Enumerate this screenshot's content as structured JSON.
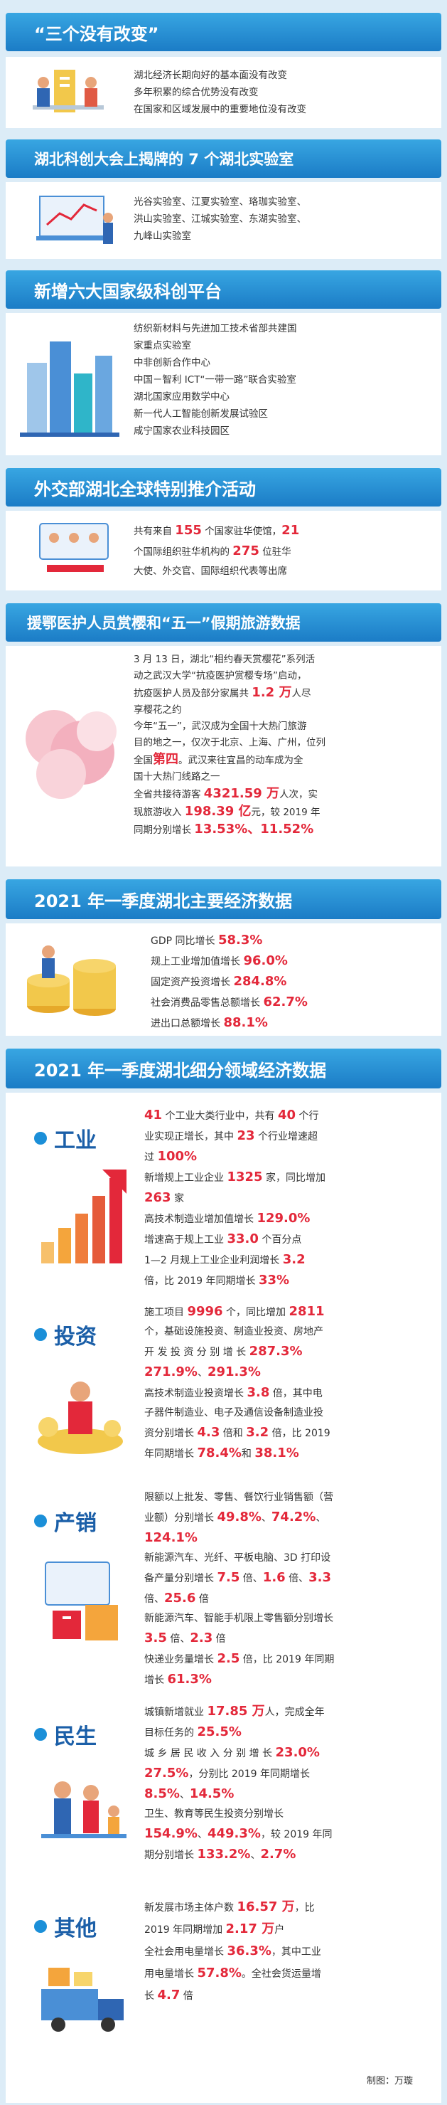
{
  "s1": {
    "title": "“三个没有改变”",
    "lines": [
      "湖北经济长期向好的基本面没有改变",
      "多年积累的综合优势没有改变",
      "在国家和区域发展中的重要地位没有改变"
    ]
  },
  "s2": {
    "title": "湖北科创大会上揭牌的 7 个湖北实验室",
    "lines": [
      "光谷实验室、江夏实验室、珞珈实验室、",
      "洪山实验室、江城实验室、东湖实验室、",
      "九峰山实验室"
    ]
  },
  "s3": {
    "title": "新增六大国家级科创平台",
    "lines": [
      "纺织新材料与先进加工技术省部共建国",
      "家重点实验室",
      "中非创新合作中心",
      "中国－智利 ICT“一带一路”联合实验室",
      "湖北国家应用数学中心",
      "新一代人工智能创新发展试验区",
      "咸宁国家农业科技园区"
    ]
  },
  "s4": {
    "title": "外交部湖北全球特别推介活动",
    "l1a": "共有来自 ",
    "n1": "155",
    "l1b": " 个国家驻华使馆，",
    "n2": "21",
    "l2a": "个国际组织驻华机构的 ",
    "n3": "275",
    "l2b": " 位驻华",
    "l3": "大使、外交官、国际组织代表等出席"
  },
  "s5": {
    "title": "援鄂医护人员赏樱和“五一”假期旅游数据",
    "l1": "3 月 13 日，湖北“相约春天赏樱花”系列活",
    "l2": "动之武汉大学“抗疫医护赏樱专场”启动，",
    "l3a": "抗疫医护人员及部分家属共 ",
    "n1": "1.2 万",
    "l3b": "人尽",
    "l4": "享樱花之约",
    "l5": "今年“五一”，武汉成为全国十大热门旅游",
    "l6": "目的地之一，仅次于北京、上海、广州，位列",
    "l7a": "全国",
    "n2": "第四",
    "l7b": "。武汉来往宜昌的动车成为全",
    "l8": "国十大热门线路之一",
    "l9a": "全省共接待游客 ",
    "n3": "4321.59 万",
    "l9b": "人次，实",
    "l10a": "现旅游收入 ",
    "n4": "198.39 亿",
    "l10b": "元，较 2019 年",
    "l11a": "同期分别增长 ",
    "n5": "13.53%、11.52%"
  },
  "s6": {
    "title": "2021 年一季度湖北主要经济数据",
    "items": [
      {
        "label": "GDP 同比增长 ",
        "value": "58.3%"
      },
      {
        "label": "规上工业增加值增长 ",
        "value": "96.0%"
      },
      {
        "label": "固定资产投资增长 ",
        "value": "284.8%"
      },
      {
        "label": "社会消费品零售总额增长 ",
        "value": "62.7%"
      },
      {
        "label": "进出口总额增长 ",
        "value": "88.1%"
      }
    ]
  },
  "s7": {
    "title": "2021 年一季度湖北细分领域经济数据",
    "gongye": {
      "title": "工业",
      "l1a": "41",
      "l1b": " 个工业大类行业中，共有 ",
      "l1c": "40",
      "l1d": " 个行",
      "l2a": "业实现正增长，其中 ",
      "l2b": "23",
      "l2c": " 个行业增速超",
      "l3a": "过 ",
      "l3b": "100%",
      "l4a": "新增规上工业企业 ",
      "l4b": "1325",
      "l4c": " 家，同比增加",
      "l5a": "263",
      "l5b": " 家",
      "l6a": "高技术制造业增加值增长 ",
      "l6b": "129.0%",
      "l7a": "增速高于规上工业 ",
      "l7b": "33.0",
      "l7c": " 个百分点",
      "l8a": "1—2 月规上工业企业利润增长 ",
      "l8b": "3.2",
      "l9a": "倍，比 2019 年同期增长 ",
      "l9b": "33%"
    },
    "touzi": {
      "title": "投资",
      "l1a": "施工项目 ",
      "l1b": "9996",
      "l1c": " 个，同比增加 ",
      "l1d": "2811",
      "l2": "个，基础设施投资、制造业投资、房地产",
      "l3a": "开 发 投 资 分 别 增 长 ",
      "l3b": "287.3%",
      "l4a": "271.9%",
      "l4b": "、",
      "l4c": "291.3%",
      "l5a": "高技术制造业投资增长 ",
      "l5b": "3.8",
      "l5c": " 倍，其中电",
      "l6": "子器件制造业、电子及通信设备制造业投",
      "l7a": "资分别增长 ",
      "l7b": "4.3",
      "l7c": " 倍和 ",
      "l7d": "3.2",
      "l7e": " 倍，比 2019",
      "l8a": "年同期增长 ",
      "l8b": "78.4%",
      "l8c": "和 ",
      "l8d": "38.1%"
    },
    "chanxiao": {
      "title": "产销",
      "l1": "限额以上批发、零售、餐饮行业销售额（营",
      "l2a": "业额）分别增长 ",
      "l2b": "49.8%",
      "l2c": "、",
      "l2d": "74.2%",
      "l2e": "、",
      "l3a": "124.1%",
      "l4": "新能源汽车、光纤、平板电脑、3D 打印设",
      "l5a": "备产量分别增长 ",
      "l5b": "7.5",
      "l5c": " 倍、",
      "l5d": "1.6",
      "l5e": " 倍、",
      "l5f": "3.3",
      "l6a": "倍、",
      "l6b": "25.6",
      "l6c": " 倍",
      "l7": "新能源汽车、智能手机限上零售额分别增长",
      "l8a": "3.5",
      "l8b": " 倍、",
      "l8c": "2.3",
      "l8d": " 倍",
      "l9a": "快递业务量增长 ",
      "l9b": "2.5",
      "l9c": " 倍，比 2019 年同期",
      "l10a": "增长 ",
      "l10b": "61.3%"
    },
    "minsheng": {
      "title": "民生",
      "l1a": "城镇新增就业 ",
      "l1b": "17.85 万",
      "l1c": "人，完成全年",
      "l2a": "目标任务的 ",
      "l2b": "25.5%",
      "l3a": "城 乡 居 民 收 入 分 别 增 长 ",
      "l3b": "23.0%",
      "l4a": "27.5%",
      "l4b": "，分别比 2019 年同期增长",
      "l5a": "8.5%",
      "l5b": "、",
      "l5c": "14.5%",
      "l6": "卫生、教育等民生投资分别增长",
      "l7a": "154.9%",
      "l7b": "、",
      "l7c": "449.3%",
      "l7d": "，较 2019 年同",
      "l8a": "期分别增长 ",
      "l8b": "133.2%",
      "l8c": "、",
      "l8d": "2.7%"
    },
    "qita": {
      "title": "其他",
      "l1a": "新发展市场主体户数 ",
      "l1b": "16.57 万",
      "l1c": "，比",
      "l2a": "2019 年同期增加 ",
      "l2b": "2.17 万",
      "l2c": "户",
      "l3a": "全社会用电量增长 ",
      "l3b": "36.3%",
      "l3c": "，其中工业",
      "l4a": "用电量增长 ",
      "l4b": "57.8%",
      "l4c": "。全社会货运量增",
      "l5a": "长 ",
      "l5b": "4.7",
      "l5c": " 倍"
    }
  },
  "credit": "制图：万璇"
}
